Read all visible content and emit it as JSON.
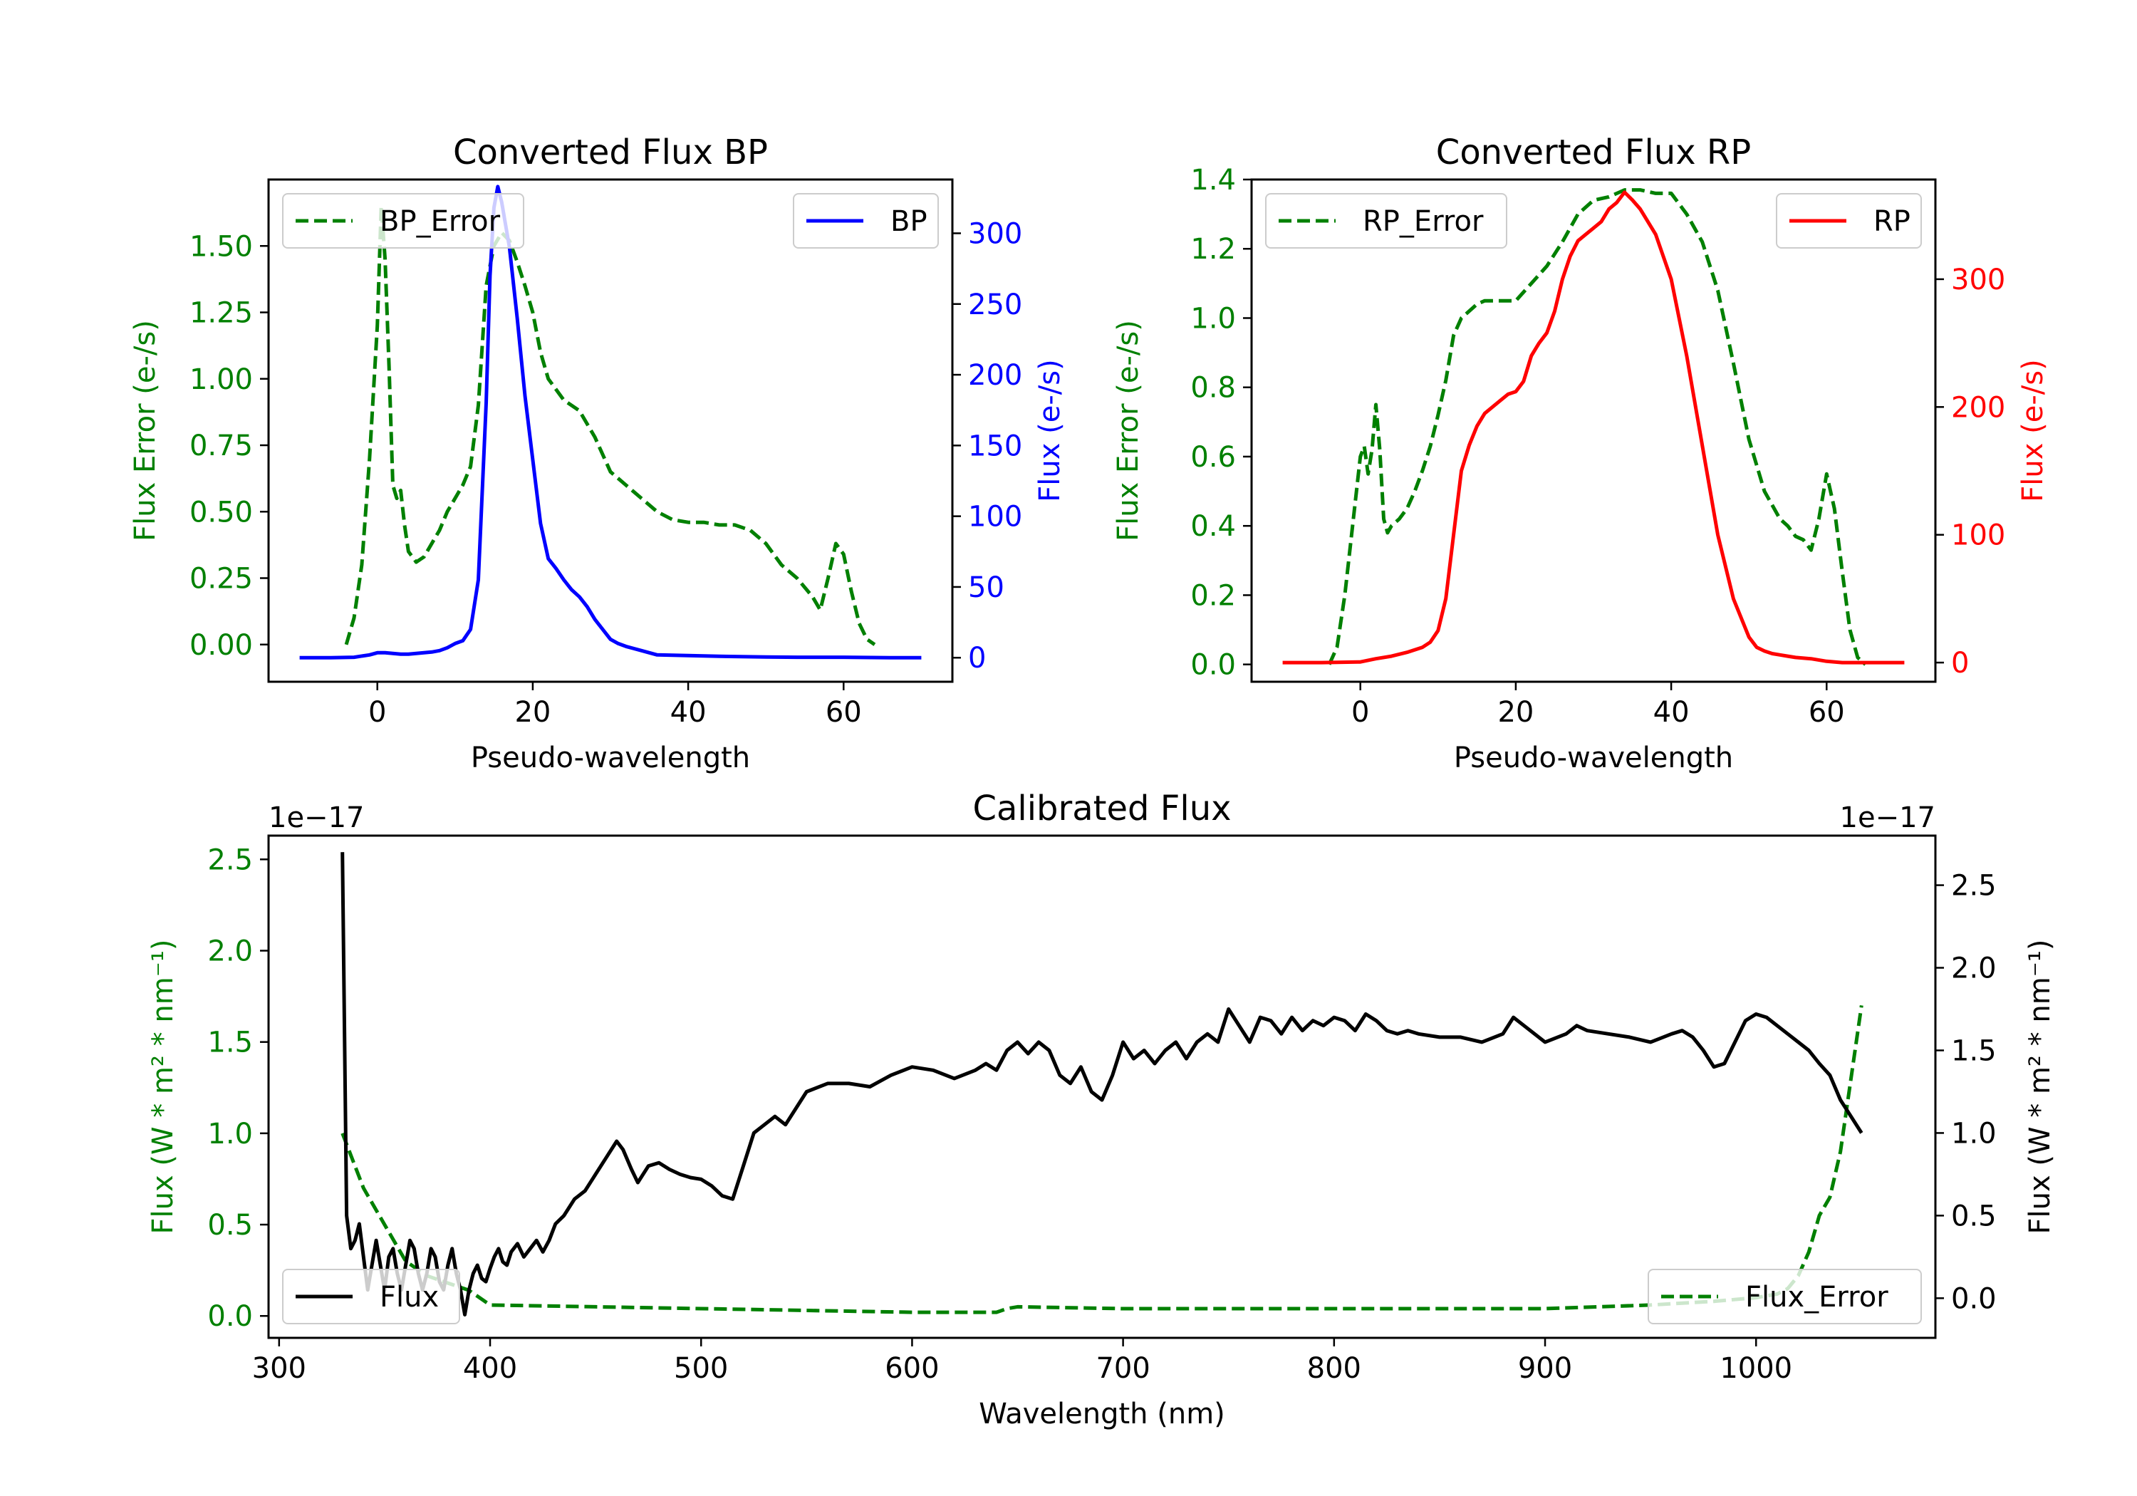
{
  "colors": {
    "green": "#008000",
    "blue": "#0000ff",
    "red": "#ff0000",
    "black": "#000000"
  },
  "chart_data": [
    {
      "id": "bp",
      "type": "line",
      "title": "Converted Flux BP",
      "xlabel": "Pseudo-wavelength",
      "ylabel_left": "Flux Error (e-/s)",
      "ylabel_right": "Flux (e-/s)",
      "xlim": [
        -14,
        74
      ],
      "ylim_left": [
        -0.14,
        1.75
      ],
      "ylim_right": [
        -17,
        338
      ],
      "x_ticks": [
        0,
        20,
        40,
        60
      ],
      "y_ticks_left": [
        "0.00",
        "0.25",
        "0.50",
        "0.75",
        "1.00",
        "1.25",
        "1.50"
      ],
      "y_ticks_right": [
        0,
        50,
        100,
        150,
        200,
        250,
        300
      ],
      "left_tick_color": "#008000",
      "right_tick_color": "#0000ff",
      "series": [
        {
          "name": "BP_Error",
          "axis": "left",
          "color": "#008000",
          "dash": true,
          "x": [
            -4,
            -3,
            -2,
            -1,
            0,
            0.5,
            1,
            1.5,
            2,
            2.5,
            3,
            3.5,
            4,
            5,
            6,
            7,
            8,
            9,
            10,
            11,
            12,
            13,
            14,
            15,
            16,
            17,
            18,
            19,
            20,
            21,
            22,
            24,
            26,
            28,
            30,
            32,
            34,
            36,
            38,
            40,
            42,
            44,
            46,
            48,
            50,
            52,
            54,
            56,
            57,
            58,
            59,
            60,
            61,
            62,
            63,
            64
          ],
          "values": [
            0,
            0.1,
            0.3,
            0.7,
            1.2,
            1.65,
            1.45,
            1.05,
            0.6,
            0.55,
            0.58,
            0.45,
            0.35,
            0.31,
            0.33,
            0.38,
            0.43,
            0.5,
            0.55,
            0.6,
            0.67,
            0.9,
            1.35,
            1.5,
            1.55,
            1.52,
            1.44,
            1.35,
            1.25,
            1.1,
            1.0,
            0.92,
            0.88,
            0.78,
            0.65,
            0.6,
            0.55,
            0.5,
            0.47,
            0.46,
            0.46,
            0.45,
            0.45,
            0.43,
            0.38,
            0.3,
            0.25,
            0.18,
            0.13,
            0.25,
            0.38,
            0.34,
            0.2,
            0.08,
            0.02,
            0
          ]
        },
        {
          "name": "BP",
          "axis": "right",
          "color": "#0000ff",
          "dash": false,
          "x": [
            -10,
            -6,
            -3,
            -1,
            0,
            1,
            2,
            3,
            4,
            5,
            6,
            7,
            8,
            9,
            10,
            11,
            12,
            13,
            14,
            14.5,
            15,
            15.5,
            16,
            17,
            18,
            19,
            20,
            21,
            22,
            23,
            24,
            25,
            26,
            27,
            28,
            29,
            30,
            31,
            32,
            34,
            36,
            40,
            44,
            50,
            54,
            60,
            66,
            70
          ],
          "values": [
            0,
            0,
            0.3,
            2,
            3.5,
            3.5,
            3,
            2.5,
            2.5,
            3,
            3.5,
            4,
            5,
            7,
            10,
            12,
            20,
            55,
            180,
            270,
            318,
            333,
            322,
            290,
            240,
            185,
            140,
            95,
            70,
            63,
            55,
            48,
            43,
            36,
            27,
            20,
            13,
            10,
            8,
            5,
            2,
            1.5,
            1,
            0.5,
            0.3,
            0.3,
            0,
            0
          ]
        }
      ],
      "legend": [
        {
          "label": "BP_Error",
          "position": "upper-left"
        },
        {
          "label": "BP",
          "position": "upper-right"
        }
      ]
    },
    {
      "id": "rp",
      "type": "line",
      "title": "Converted Flux RP",
      "xlabel": "Pseudo-wavelength",
      "ylabel_left": "Flux Error (e-/s)",
      "ylabel_right": "Flux (e-/s)",
      "xlim": [
        -14,
        74
      ],
      "ylim_left": [
        -0.05,
        1.4
      ],
      "ylim_right": [
        -15,
        378
      ],
      "x_ticks": [
        0,
        20,
        40,
        60
      ],
      "y_ticks_left": [
        "0.0",
        "0.2",
        "0.4",
        "0.6",
        "0.8",
        "1.0",
        "1.2",
        "1.4"
      ],
      "y_ticks_right": [
        0,
        100,
        200,
        300
      ],
      "left_tick_color": "#008000",
      "right_tick_color": "#ff0000",
      "series": [
        {
          "name": "RP_Error",
          "axis": "left",
          "color": "#008000",
          "dash": true,
          "x": [
            -4,
            -3,
            -2,
            -1,
            0,
            0.5,
            1,
            1.5,
            2,
            2.5,
            3,
            3.5,
            4,
            5,
            6,
            7,
            8,
            9,
            10,
            11,
            12,
            13,
            14,
            15,
            16,
            17,
            18,
            19,
            20,
            22,
            24,
            26,
            28,
            30,
            32,
            34,
            36,
            38,
            40,
            42,
            44,
            46,
            48,
            50,
            52,
            54,
            55,
            56,
            57,
            58,
            59,
            60,
            61,
            62,
            63,
            64,
            65
          ],
          "values": [
            0,
            0.05,
            0.2,
            0.4,
            0.6,
            0.63,
            0.55,
            0.62,
            0.75,
            0.62,
            0.42,
            0.38,
            0.4,
            0.42,
            0.45,
            0.5,
            0.56,
            0.63,
            0.72,
            0.82,
            0.95,
            1.0,
            1.02,
            1.04,
            1.05,
            1.05,
            1.05,
            1.05,
            1.05,
            1.1,
            1.15,
            1.22,
            1.3,
            1.34,
            1.35,
            1.37,
            1.37,
            1.36,
            1.36,
            1.3,
            1.22,
            1.08,
            0.87,
            0.65,
            0.5,
            0.42,
            0.4,
            0.37,
            0.36,
            0.33,
            0.42,
            0.55,
            0.45,
            0.27,
            0.1,
            0.02,
            0
          ]
        },
        {
          "name": "RP",
          "axis": "right",
          "color": "#ff0000",
          "dash": false,
          "x": [
            -10,
            -5,
            0,
            2,
            4,
            6,
            8,
            9,
            10,
            11,
            12,
            13,
            14,
            15,
            16,
            17,
            18,
            19,
            20,
            21,
            22,
            23,
            24,
            25,
            26,
            27,
            28,
            29,
            30,
            31,
            32,
            33,
            34,
            35,
            36,
            38,
            40,
            42,
            44,
            46,
            48,
            50,
            51,
            52,
            53,
            54,
            55,
            56,
            58,
            60,
            62,
            65,
            70
          ],
          "values": [
            0,
            0,
            0.5,
            3,
            5,
            8,
            12,
            16,
            25,
            50,
            100,
            150,
            170,
            185,
            195,
            200,
            205,
            210,
            212,
            220,
            240,
            250,
            258,
            275,
            300,
            318,
            330,
            335,
            340,
            345,
            355,
            360,
            368,
            362,
            355,
            335,
            300,
            240,
            170,
            100,
            50,
            20,
            12,
            9,
            7,
            6,
            5,
            4,
            3,
            1,
            0,
            0,
            0
          ]
        }
      ],
      "legend": [
        {
          "label": "RP_Error",
          "position": "upper-left"
        },
        {
          "label": "RP",
          "position": "upper-right"
        }
      ]
    },
    {
      "id": "cal",
      "type": "line",
      "title": "Calibrated Flux",
      "xlabel": "Wavelength (nm)",
      "ylabel_left": "Flux (W * m² * nm⁻¹)",
      "ylabel_right": "Flux (W * m² * nm⁻¹)",
      "offset_left": "1e−17",
      "offset_right": "1e−17",
      "xlim": [
        295,
        1085
      ],
      "ylim_left": [
        -0.12,
        2.63
      ],
      "ylim_right": [
        -0.24,
        2.8
      ],
      "x_ticks": [
        300,
        400,
        500,
        600,
        700,
        800,
        900,
        1000
      ],
      "y_ticks_left": [
        "0.0",
        "0.5",
        "1.0",
        "1.5",
        "2.0",
        "2.5"
      ],
      "y_ticks_right": [
        "0.0",
        "0.5",
        "1.0",
        "1.5",
        "2.0",
        "2.5"
      ],
      "left_tick_color": "#008000",
      "right_tick_color": "#000000",
      "series": [
        {
          "name": "Flux_Error",
          "axis": "left",
          "color": "#008000",
          "dash": true,
          "x": [
            330,
            340,
            350,
            360,
            370,
            380,
            390,
            400,
            450,
            500,
            550,
            600,
            640,
            645,
            650,
            700,
            800,
            900,
            950,
            980,
            1000,
            1010,
            1015,
            1020,
            1025,
            1030,
            1035,
            1040,
            1045,
            1050
          ],
          "values": [
            1.0,
            0.7,
            0.5,
            0.3,
            0.22,
            0.18,
            0.14,
            0.06,
            0.05,
            0.04,
            0.03,
            0.02,
            0.02,
            0.04,
            0.05,
            0.04,
            0.04,
            0.04,
            0.06,
            0.08,
            0.1,
            0.12,
            0.15,
            0.22,
            0.35,
            0.55,
            0.65,
            0.9,
            1.3,
            1.7
          ]
        },
        {
          "name": "Flux",
          "axis": "right",
          "color": "#000000",
          "dash": false,
          "x": [
            330,
            332,
            334,
            336,
            338,
            340,
            342,
            344,
            346,
            348,
            350,
            352,
            354,
            356,
            358,
            360,
            362,
            364,
            366,
            368,
            370,
            372,
            374,
            376,
            378,
            380,
            382,
            384,
            386,
            388,
            390,
            392,
            394,
            396,
            398,
            400,
            402,
            404,
            406,
            408,
            410,
            413,
            416,
            419,
            422,
            425,
            428,
            431,
            435,
            440,
            445,
            450,
            455,
            460,
            463,
            467,
            470,
            475,
            480,
            485,
            490,
            495,
            500,
            505,
            510,
            515,
            520,
            525,
            530,
            535,
            540,
            545,
            550,
            560,
            570,
            580,
            590,
            600,
            610,
            620,
            630,
            635,
            640,
            645,
            650,
            655,
            660,
            665,
            670,
            675,
            680,
            685,
            690,
            695,
            700,
            705,
            710,
            715,
            720,
            725,
            730,
            735,
            740,
            745,
            750,
            755,
            760,
            765,
            770,
            775,
            780,
            785,
            790,
            795,
            800,
            805,
            810,
            815,
            820,
            825,
            830,
            835,
            840,
            850,
            860,
            870,
            880,
            885,
            890,
            900,
            910,
            915,
            920,
            930,
            940,
            950,
            960,
            965,
            970,
            975,
            980,
            985,
            990,
            995,
            1000,
            1005,
            1010,
            1015,
            1020,
            1025,
            1030,
            1035,
            1040,
            1045,
            1050
          ],
          "values": [
            2.7,
            0.5,
            0.3,
            0.35,
            0.45,
            0.25,
            0.05,
            0.2,
            0.35,
            0.2,
            0.05,
            0.25,
            0.3,
            0.15,
            0.05,
            0.2,
            0.35,
            0.3,
            0.15,
            0.05,
            0.15,
            0.3,
            0.25,
            0.1,
            0.05,
            0.2,
            0.3,
            0.15,
            0.05,
            -0.1,
            0.05,
            0.15,
            0.2,
            0.12,
            0.1,
            0.18,
            0.25,
            0.3,
            0.22,
            0.2,
            0.28,
            0.33,
            0.25,
            0.3,
            0.35,
            0.28,
            0.35,
            0.45,
            0.5,
            0.6,
            0.65,
            0.75,
            0.85,
            0.95,
            0.9,
            0.78,
            0.7,
            0.8,
            0.82,
            0.78,
            0.75,
            0.73,
            0.72,
            0.68,
            0.62,
            0.6,
            0.8,
            1.0,
            1.05,
            1.1,
            1.05,
            1.15,
            1.25,
            1.3,
            1.3,
            1.28,
            1.35,
            1.4,
            1.38,
            1.33,
            1.38,
            1.42,
            1.38,
            1.5,
            1.55,
            1.48,
            1.55,
            1.5,
            1.35,
            1.3,
            1.4,
            1.25,
            1.2,
            1.35,
            1.55,
            1.45,
            1.5,
            1.42,
            1.5,
            1.55,
            1.45,
            1.55,
            1.6,
            1.55,
            1.75,
            1.65,
            1.55,
            1.7,
            1.68,
            1.6,
            1.7,
            1.62,
            1.68,
            1.65,
            1.7,
            1.68,
            1.62,
            1.72,
            1.68,
            1.62,
            1.6,
            1.62,
            1.6,
            1.58,
            1.58,
            1.55,
            1.6,
            1.7,
            1.65,
            1.55,
            1.6,
            1.65,
            1.62,
            1.6,
            1.58,
            1.55,
            1.6,
            1.62,
            1.58,
            1.5,
            1.4,
            1.42,
            1.55,
            1.68,
            1.72,
            1.7,
            1.65,
            1.6,
            1.55,
            1.5,
            1.42,
            1.35,
            1.2,
            1.1,
            1.0
          ]
        }
      ],
      "legend": [
        {
          "label": "Flux",
          "position": "lower-left"
        },
        {
          "label": "Flux_Error",
          "position": "lower-right"
        }
      ]
    }
  ]
}
